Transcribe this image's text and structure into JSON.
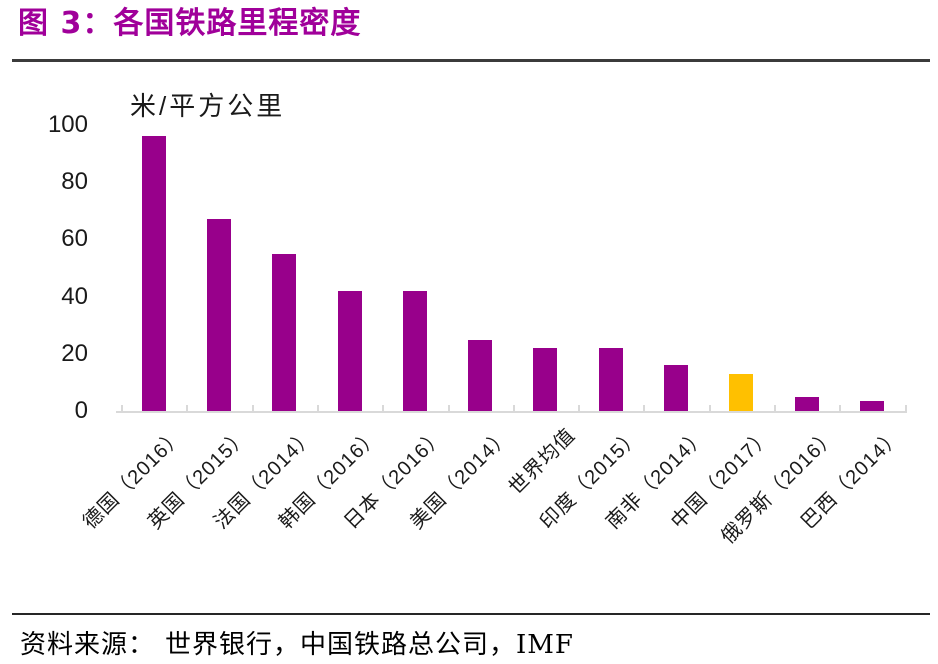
{
  "figure": {
    "title": "图 3：各国铁路里程密度",
    "source": {
      "label": "资料来源：",
      "text": "世界银行，中国铁路总公司，IMF"
    }
  },
  "chart_data": {
    "type": "bar",
    "title": "各国铁路里程密度",
    "ylabel": "米/平方公里",
    "xlabel": "",
    "categories": [
      "德国（2016）",
      "英国（2015）",
      "法国（2014）",
      "韩国（2016）",
      "日本（2016）",
      "美国（2014）",
      "世界均值",
      "印度（2015）",
      "南非（2014）",
      "中国（2017）",
      "俄罗斯（2016）",
      "巴西（2014）"
    ],
    "values": [
      96,
      67,
      55,
      42,
      42,
      25,
      22,
      22,
      16,
      13,
      5,
      3.5
    ],
    "ylim": [
      0,
      100
    ],
    "yticks": [
      0,
      20,
      40,
      60,
      80,
      100
    ],
    "grid": false,
    "legend": "none",
    "bar_color": "#98008B",
    "highlight": {
      "index": 9,
      "category": "中国（2017）",
      "color": "#FFC000"
    },
    "axis_color": "#D9D9D9",
    "title_color": "#A0009A",
    "label_rotation_deg": 45
  }
}
